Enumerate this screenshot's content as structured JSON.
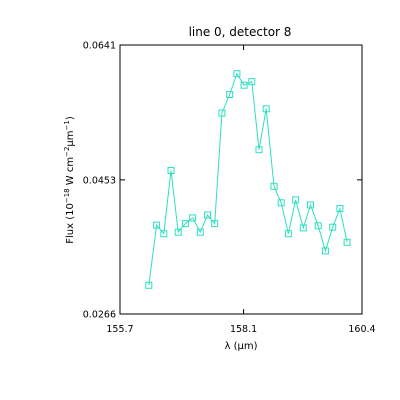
{
  "chart_data": {
    "type": "line",
    "title": "line 0, detector 8",
    "xlabel": {
      "pre": "λ (",
      "mu": "μ",
      "post": "m)"
    },
    "ylabel": {
      "a": "Flux (10",
      "a_sup": "−18",
      "b": " W cm",
      "b_sup": "−2",
      "mu": "μ",
      "c": "m",
      "c_sup": "−1",
      "d": ")"
    },
    "xlim": [
      155.7,
      160.4
    ],
    "ylim": [
      0.0266,
      0.0641
    ],
    "x_ticks": [
      155.7,
      158.1,
      160.4
    ],
    "x_tick_labels": [
      "155.7",
      "158.1",
      "160.4"
    ],
    "y_ticks": [
      0.0266,
      0.0453,
      0.0641
    ],
    "y_tick_labels": [
      "0.0266",
      "0.0453",
      "0.0641"
    ],
    "marker": "open-square",
    "series": [
      {
        "color": "#2de0c0",
        "x": [
          156.26,
          156.41,
          156.55,
          156.69,
          156.83,
          156.97,
          157.11,
          157.26,
          157.4,
          157.54,
          157.68,
          157.83,
          157.97,
          158.11,
          158.26,
          158.4,
          158.54,
          158.69,
          158.83,
          158.97,
          159.11,
          159.26,
          159.4,
          159.55,
          159.69,
          159.83,
          159.97,
          160.11
        ],
        "y": [
          0.0306,
          0.039,
          0.0378,
          0.0466,
          0.038,
          0.0392,
          0.04,
          0.038,
          0.0404,
          0.0392,
          0.0546,
          0.0572,
          0.0601,
          0.0585,
          0.059,
          0.0495,
          0.0552,
          0.0444,
          0.0421,
          0.0378,
          0.0425,
          0.0386,
          0.0418,
          0.0389,
          0.0354,
          0.0387,
          0.0413,
          0.0366
        ]
      }
    ]
  }
}
